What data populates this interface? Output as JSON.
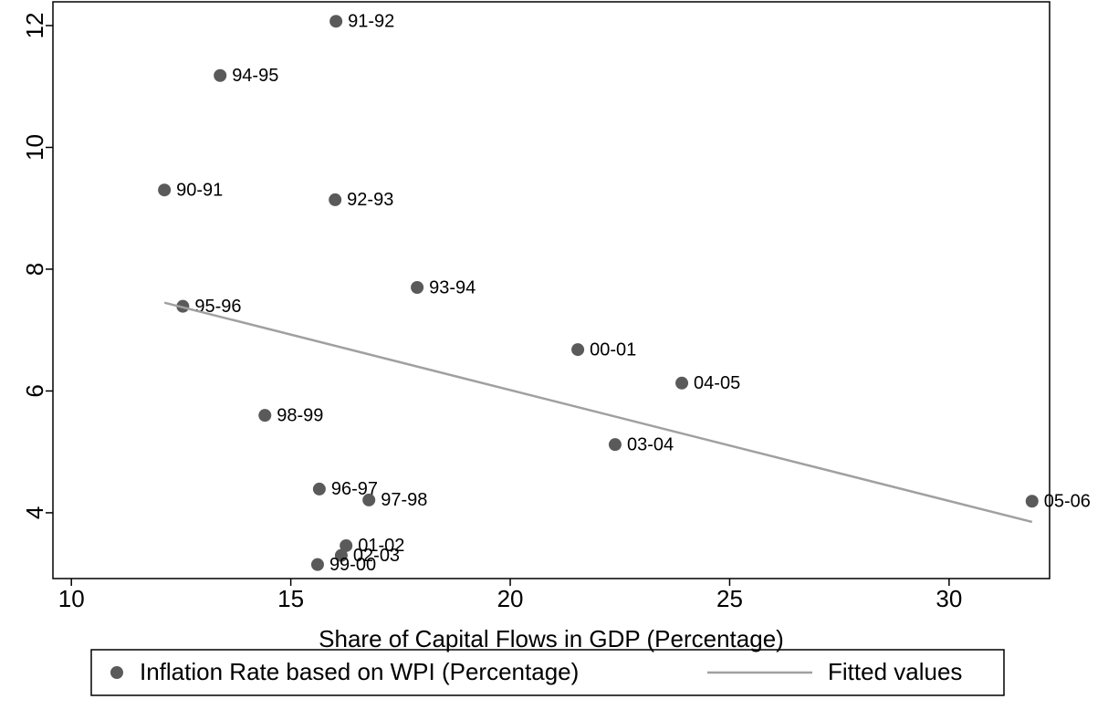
{
  "chart_data": {
    "type": "scatter",
    "x_label": "Share of Capital Flows in GDP (Percentage)",
    "xlim": [
      9.58,
      32.29
    ],
    "xticks": [
      10,
      15,
      20,
      25,
      30
    ],
    "ylim": [
      2.92,
      12.39
    ],
    "yticks": [
      4,
      6,
      8,
      10,
      12
    ],
    "legend": "bottom",
    "series": [
      {
        "name": "Inflation Rate based on WPI (Percentage)",
        "color": "#5a5a5a",
        "kind": "points",
        "x": [
          16.03,
          13.39,
          12.12,
          16.01,
          17.88,
          12.54,
          21.54,
          23.91,
          14.41,
          22.39,
          15.65,
          16.78,
          31.89,
          16.26,
          16.15,
          15.61
        ],
        "values": [
          12.07,
          11.18,
          9.3,
          9.14,
          7.7,
          7.39,
          6.68,
          6.13,
          5.6,
          5.12,
          4.39,
          4.21,
          4.19,
          3.46,
          3.3,
          3.15
        ],
        "labels": [
          "91-92",
          "94-95",
          "90-91",
          "92-93",
          "93-94",
          "95-96",
          "00-01",
          "04-05",
          "98-99",
          "03-04",
          "96-97",
          "97-98",
          "05-06",
          "01-02",
          "02-03",
          "99-00"
        ]
      },
      {
        "name": "Fitted values",
        "color": "#a0a0a0",
        "kind": "line",
        "x": [
          12.12,
          31.89
        ],
        "values": [
          7.45,
          3.85
        ]
      }
    ]
  }
}
